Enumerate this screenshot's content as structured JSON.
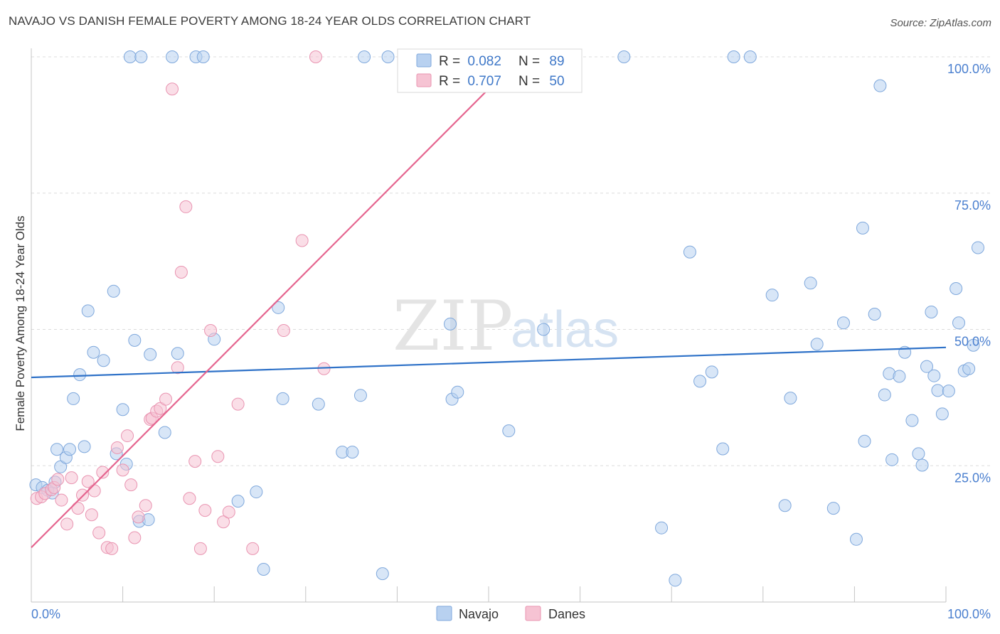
{
  "header": {
    "title": "NAVAJO VS DANISH FEMALE POVERTY AMONG 18-24 YEAR OLDS CORRELATION CHART",
    "source": "Source: ZipAtlas.com"
  },
  "watermark": {
    "zip": "ZIP",
    "atlas": "atlas"
  },
  "colors": {
    "navajo_fill": "#b8d1f0",
    "navajo_stroke": "#7fa8dc",
    "navajo_line": "#2f72c8",
    "danes_fill": "#f6c3d3",
    "danes_stroke": "#e994b1",
    "danes_line": "#e5658f",
    "tick_label": "#4a7fcf",
    "grid": "#dcdcdc"
  },
  "legend_stats": [
    {
      "r_label": "R =",
      "r_value": "0.082",
      "n_label": "N =",
      "n_value": "89"
    },
    {
      "r_label": "R =",
      "r_value": "0.707",
      "n_label": "N =",
      "n_value": "50"
    }
  ],
  "legend_bottom": [
    "Navajo",
    "Danes"
  ],
  "chart_data": {
    "type": "scatter",
    "title": "NAVAJO VS DANISH FEMALE POVERTY AMONG 18-24 YEAR OLDS CORRELATION CHART",
    "xlabel": "",
    "ylabel": "Female Poverty Among 18-24 Year Olds",
    "xlim": [
      0,
      100
    ],
    "ylim": [
      0,
      100
    ],
    "x_tick_labels": [
      {
        "value": 0,
        "label": "0.0%"
      },
      {
        "value": 100,
        "label": "100.0%"
      }
    ],
    "y_tick_labels": [
      {
        "value": 25,
        "label": "25.0%"
      },
      {
        "value": 50,
        "label": "50.0%"
      },
      {
        "value": 75,
        "label": "75.0%"
      },
      {
        "value": 100,
        "label": "100.0%"
      }
    ],
    "grid": "horizontal dashed",
    "legend": "top-center",
    "series": [
      {
        "name": "Navajo",
        "R": 0.082,
        "N": 89,
        "trend": {
          "x0": 0,
          "y0": 41.2,
          "x1": 100,
          "y1": 46.7
        },
        "points": [
          [
            0.5,
            21.5
          ],
          [
            1.2,
            21.0
          ],
          [
            1.8,
            20.5
          ],
          [
            2.3,
            20.0
          ],
          [
            2.6,
            22.0
          ],
          [
            2.8,
            28.0
          ],
          [
            3.2,
            24.8
          ],
          [
            3.8,
            26.5
          ],
          [
            4.2,
            28.0
          ],
          [
            4.6,
            37.3
          ],
          [
            5.3,
            41.7
          ],
          [
            5.8,
            28.5
          ],
          [
            6.2,
            53.4
          ],
          [
            6.8,
            45.8
          ],
          [
            7.9,
            44.3
          ],
          [
            9.0,
            57.0
          ],
          [
            9.3,
            27.2
          ],
          [
            10.0,
            35.3
          ],
          [
            10.4,
            25.3
          ],
          [
            11.3,
            48.0
          ],
          [
            11.8,
            14.8
          ],
          [
            12.8,
            15.1
          ],
          [
            13.0,
            45.4
          ],
          [
            14.6,
            31.1
          ],
          [
            16.0,
            45.6
          ],
          [
            10.8,
            100.0
          ],
          [
            12.0,
            100.0
          ],
          [
            15.4,
            100.0
          ],
          [
            18.0,
            100.0
          ],
          [
            18.8,
            100.0
          ],
          [
            20.0,
            48.2
          ],
          [
            22.6,
            18.5
          ],
          [
            24.6,
            20.2
          ],
          [
            25.4,
            6.0
          ],
          [
            27.0,
            54.0
          ],
          [
            27.5,
            37.3
          ],
          [
            31.4,
            36.3
          ],
          [
            34.0,
            27.5
          ],
          [
            35.1,
            27.5
          ],
          [
            36.0,
            37.9
          ],
          [
            36.4,
            100.0
          ],
          [
            39.0,
            100.0
          ],
          [
            38.4,
            5.2
          ],
          [
            45.8,
            51.0
          ],
          [
            46.0,
            37.2
          ],
          [
            46.6,
            38.5
          ],
          [
            52.2,
            31.4
          ],
          [
            56.0,
            50.0
          ],
          [
            64.8,
            100.0
          ],
          [
            68.9,
            13.6
          ],
          [
            70.4,
            4.0
          ],
          [
            72.0,
            64.2
          ],
          [
            73.1,
            40.5
          ],
          [
            74.4,
            42.2
          ],
          [
            75.6,
            28.1
          ],
          [
            76.8,
            100.0
          ],
          [
            78.6,
            100.0
          ],
          [
            81.0,
            56.3
          ],
          [
            82.4,
            17.7
          ],
          [
            83.0,
            37.4
          ],
          [
            85.2,
            58.5
          ],
          [
            85.9,
            47.3
          ],
          [
            87.7,
            17.2
          ],
          [
            88.8,
            51.2
          ],
          [
            90.2,
            11.5
          ],
          [
            90.9,
            68.6
          ],
          [
            91.1,
            29.5
          ],
          [
            92.2,
            52.8
          ],
          [
            92.8,
            94.7
          ],
          [
            93.3,
            38.0
          ],
          [
            93.8,
            41.9
          ],
          [
            94.1,
            26.1
          ],
          [
            94.9,
            41.4
          ],
          [
            95.5,
            45.8
          ],
          [
            96.3,
            33.3
          ],
          [
            97.0,
            27.2
          ],
          [
            97.4,
            25.1
          ],
          [
            97.9,
            43.2
          ],
          [
            98.4,
            53.2
          ],
          [
            98.7,
            41.5
          ],
          [
            99.1,
            38.8
          ],
          [
            99.6,
            34.5
          ],
          [
            100.3,
            38.7
          ],
          [
            101.1,
            57.5
          ],
          [
            101.4,
            51.2
          ],
          [
            102.0,
            42.4
          ],
          [
            102.5,
            42.8
          ],
          [
            103.0,
            47.1
          ],
          [
            103.5,
            65.0
          ]
        ]
      },
      {
        "name": "Danes",
        "R": 0.707,
        "N": 50,
        "trend": {
          "x0": 0,
          "y0": 10.0,
          "x1": 53.5,
          "y1": 100.0
        },
        "points": [
          [
            0.6,
            19.0
          ],
          [
            1.1,
            19.3
          ],
          [
            1.5,
            19.9
          ],
          [
            2.2,
            20.6
          ],
          [
            2.5,
            21.0
          ],
          [
            2.9,
            22.5
          ],
          [
            3.3,
            18.7
          ],
          [
            3.9,
            14.3
          ],
          [
            4.4,
            22.8
          ],
          [
            5.1,
            17.2
          ],
          [
            5.6,
            19.6
          ],
          [
            6.2,
            22.1
          ],
          [
            6.6,
            16.0
          ],
          [
            6.9,
            20.4
          ],
          [
            7.4,
            12.7
          ],
          [
            7.8,
            23.8
          ],
          [
            8.3,
            10.0
          ],
          [
            8.8,
            9.8
          ],
          [
            9.4,
            28.3
          ],
          [
            10.0,
            24.2
          ],
          [
            10.5,
            30.5
          ],
          [
            10.9,
            21.5
          ],
          [
            11.3,
            11.8
          ],
          [
            11.7,
            15.6
          ],
          [
            12.5,
            17.7
          ],
          [
            13.0,
            33.5
          ],
          [
            13.2,
            33.7
          ],
          [
            13.7,
            35.0
          ],
          [
            14.1,
            35.5
          ],
          [
            14.7,
            37.2
          ],
          [
            15.4,
            94.1
          ],
          [
            16.0,
            43.0
          ],
          [
            16.4,
            60.5
          ],
          [
            16.9,
            72.5
          ],
          [
            17.3,
            19.0
          ],
          [
            17.9,
            25.8
          ],
          [
            18.5,
            9.8
          ],
          [
            19.0,
            16.8
          ],
          [
            19.6,
            49.8
          ],
          [
            20.4,
            26.7
          ],
          [
            21.0,
            14.7
          ],
          [
            21.6,
            16.5
          ],
          [
            22.6,
            36.3
          ],
          [
            24.2,
            9.8
          ],
          [
            27.6,
            49.8
          ],
          [
            29.6,
            66.3
          ],
          [
            32.0,
            42.8
          ],
          [
            31.1,
            100.0
          ],
          [
            40.7,
            100.0
          ],
          [
            55.5,
            100.0
          ]
        ]
      }
    ]
  }
}
